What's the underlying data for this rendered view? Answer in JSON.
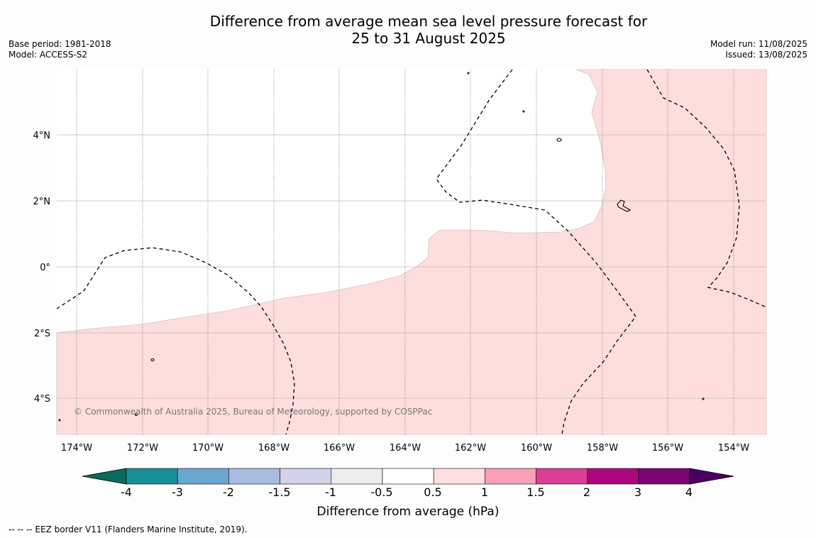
{
  "title_line1": "Difference from average mean sea level pressure forecast for",
  "title_line2": "25 to 31 August 2025",
  "base_period": "Base period: 1981-2018",
  "model": "Model: ACCESS-S2",
  "model_run": "Model run: 11/08/2025",
  "issued": "Issued: 13/08/2025",
  "copyright": "© Commonwealth of Australia 2025, Bureau of Meteorology, supported by COSPPac",
  "footer": "-- -- -- EEZ border V11 (Flanders Marine Institute, 2019).",
  "lon_ticks": [
    "174°W",
    "172°W",
    "170°W",
    "168°W",
    "166°W",
    "164°W",
    "162°W",
    "160°W",
    "158°W",
    "156°W",
    "154°W"
  ],
  "lat_ticks": [
    "4°N",
    "2°N",
    "0°",
    "2°S",
    "4°S"
  ],
  "colorbar": {
    "label": "Difference from average (hPa)",
    "ticks": [
      "-4",
      "-3",
      "-2",
      "-1.5",
      "-1",
      "-0.5",
      "0.5",
      "1",
      "1.5",
      "2",
      "3",
      "4"
    ],
    "colors": [
      "#0b6b5e",
      "#1b8f97",
      "#6aa8cf",
      "#a8bbe0",
      "#d2d2e8",
      "#ececee",
      "#ffffff",
      "#fde0df",
      "#f7a0b8",
      "#dc3d99",
      "#ad067d",
      "#7a0674",
      "#4a0062"
    ]
  },
  "map": {
    "anomaly_fill_color": "#fddedd",
    "anomaly_range_hPa": "0.5 to 1"
  }
}
